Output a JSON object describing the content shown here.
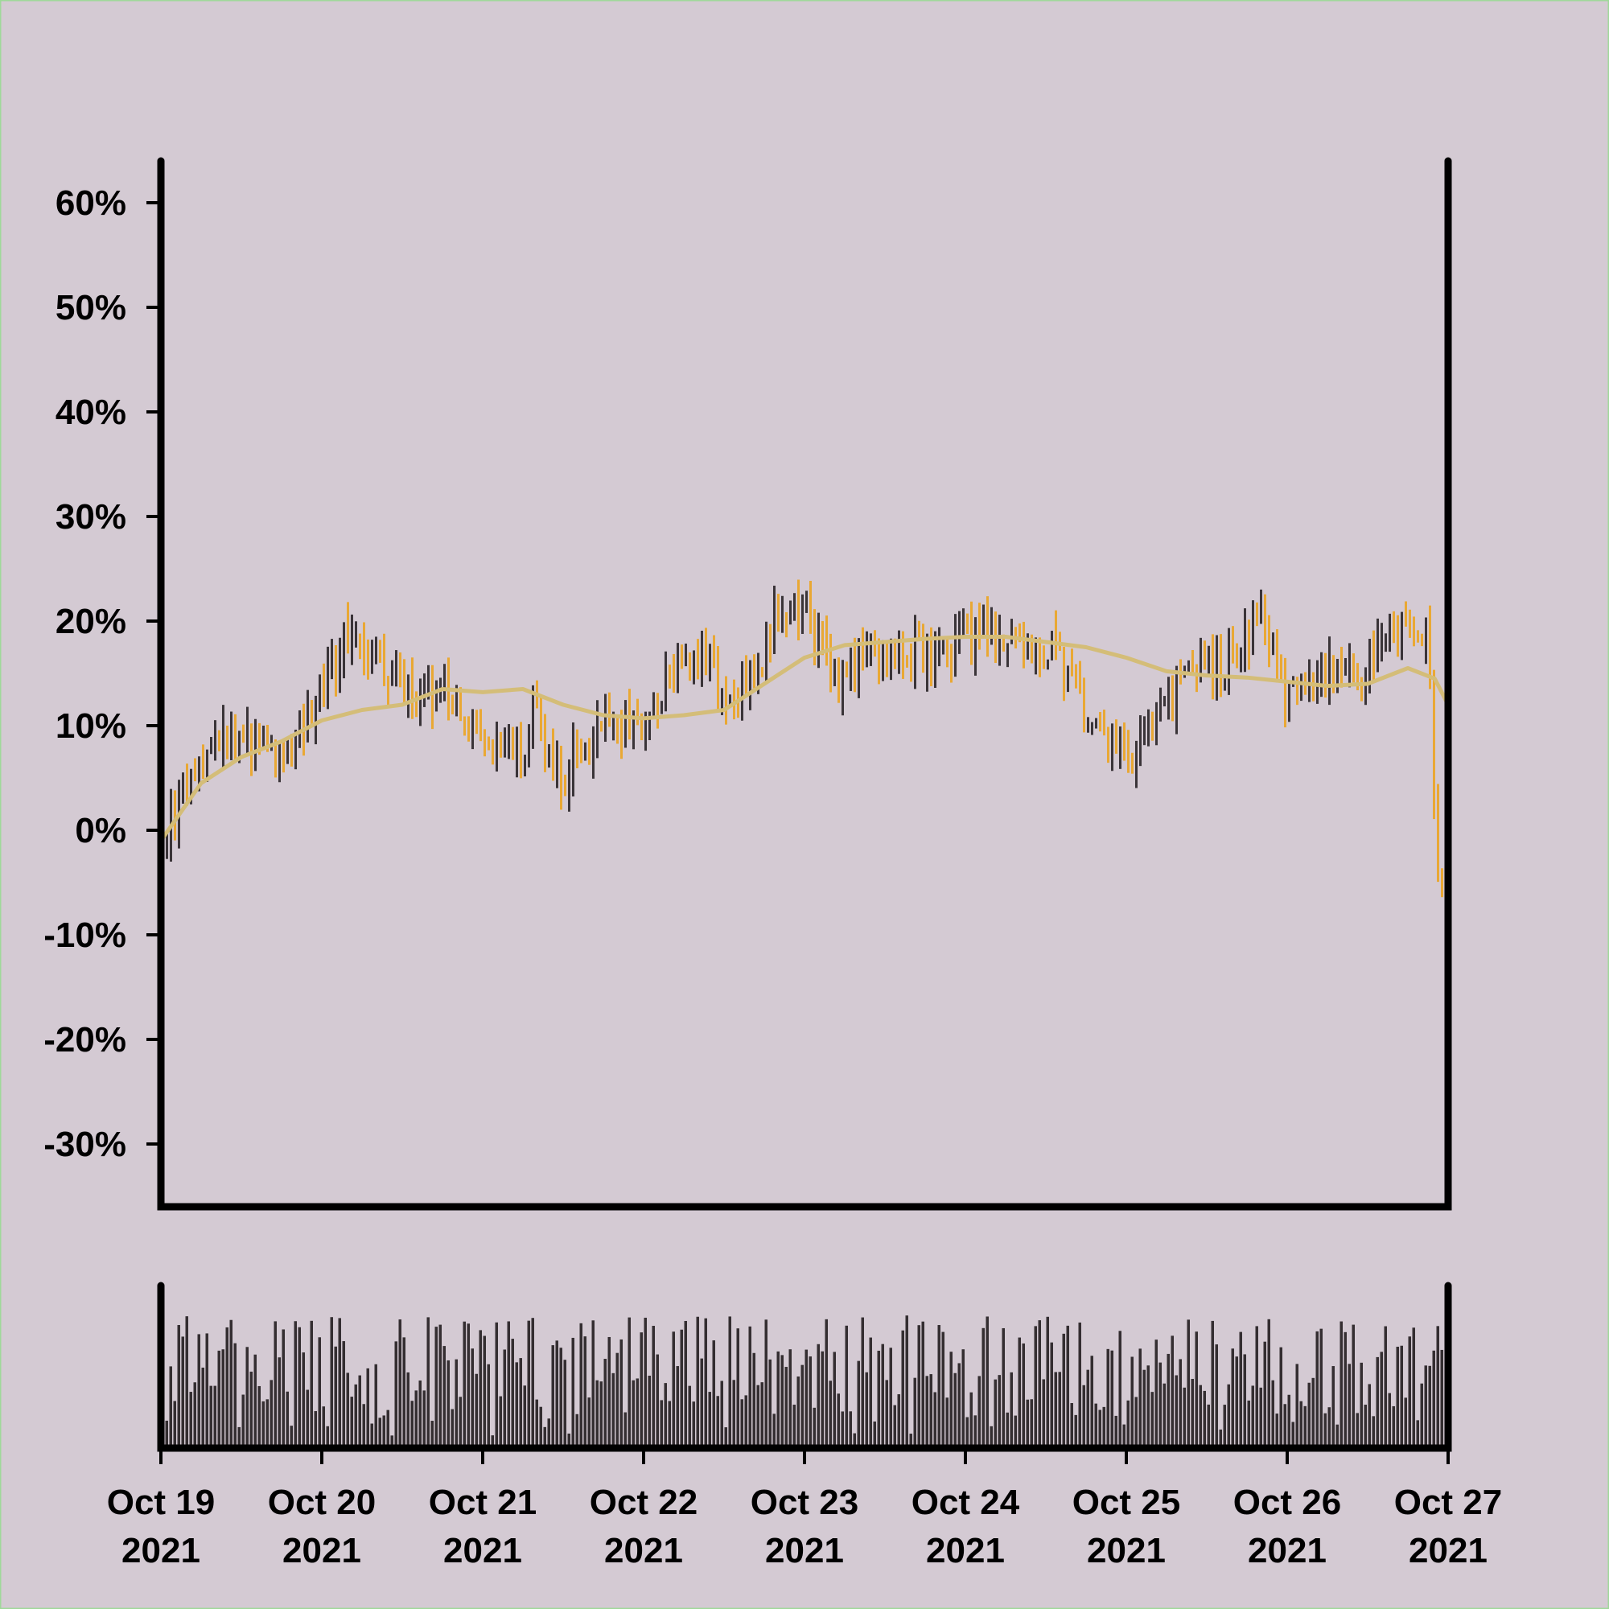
{
  "chart_data": {
    "type": "ohlc",
    "x_tick_labels": [
      {
        "line1": "Oct 19",
        "line2": "2021"
      },
      {
        "line1": "Oct 20",
        "line2": "2021"
      },
      {
        "line1": "Oct 21",
        "line2": "2021"
      },
      {
        "line1": "Oct 22",
        "line2": "2021"
      },
      {
        "line1": "Oct 23",
        "line2": "2021"
      },
      {
        "line1": "Oct 24",
        "line2": "2021"
      },
      {
        "line1": "Oct 25",
        "line2": "2021"
      },
      {
        "line1": "Oct 26",
        "line2": "2021"
      },
      {
        "line1": "Oct 27",
        "line2": "2021"
      }
    ],
    "y_tick_labels": [
      "60%",
      "50%",
      "40%",
      "30%",
      "20%",
      "10%",
      "0%",
      "-10%",
      "-20%",
      "-30%"
    ],
    "y_tick_values": [
      60,
      50,
      40,
      30,
      20,
      10,
      0,
      -10,
      -20,
      -30
    ],
    "ylim": [
      -36,
      64
    ],
    "xlim": [
      "2021-10-19",
      "2021-10-27"
    ],
    "units": "% change",
    "bars_per_day": 40,
    "price_anchors_percent": [
      [
        "2021-10-19 00:00",
        -1
      ],
      [
        "2021-10-19 06:00",
        6
      ],
      [
        "2021-10-19 12:00",
        10
      ],
      [
        "2021-10-19 18:00",
        7
      ],
      [
        "2021-10-20 00:00",
        13
      ],
      [
        "2021-10-20 03:00",
        18
      ],
      [
        "2021-10-20 07:00",
        17
      ],
      [
        "2021-10-20 12:00",
        14
      ],
      [
        "2021-10-20 18:00",
        13
      ],
      [
        "2021-10-21 00:00",
        9
      ],
      [
        "2021-10-21 05:00",
        7
      ],
      [
        "2021-10-21 08:00",
        11
      ],
      [
        "2021-10-21 12:00",
        5
      ],
      [
        "2021-10-21 17:00",
        9
      ],
      [
        "2021-10-22 00:00",
        11
      ],
      [
        "2021-10-22 05:00",
        15
      ],
      [
        "2021-10-22 09:00",
        18
      ],
      [
        "2021-10-22 12:00",
        12
      ],
      [
        "2021-10-22 18:00",
        17
      ],
      [
        "2021-10-22 20:00",
        21
      ],
      [
        "2021-10-23 00:00",
        21
      ],
      [
        "2021-10-23 05:00",
        14
      ],
      [
        "2021-10-23 09:00",
        17
      ],
      [
        "2021-10-23 13:00",
        18
      ],
      [
        "2021-10-23 20:00",
        16
      ],
      [
        "2021-10-24 03:00",
        20
      ],
      [
        "2021-10-24 08:00",
        18
      ],
      [
        "2021-10-24 14:00",
        17
      ],
      [
        "2021-10-24 19:00",
        9
      ],
      [
        "2021-10-25 00:00",
        7
      ],
      [
        "2021-10-25 06:00",
        12
      ],
      [
        "2021-10-25 10:00",
        16
      ],
      [
        "2021-10-25 16:00",
        16
      ],
      [
        "2021-10-25 20:00",
        21
      ],
      [
        "2021-10-26 00:00",
        13
      ],
      [
        "2021-10-26 06:00",
        15
      ],
      [
        "2021-10-26 10:00",
        14
      ],
      [
        "2021-10-26 15:00",
        19
      ],
      [
        "2021-10-26 21:00",
        19
      ],
      [
        "2021-10-26 22:00",
        0
      ],
      [
        "2021-10-27 00:00",
        -9
      ]
    ],
    "moving_average": [
      [
        "2021-10-19 00:00",
        -1
      ],
      [
        "2021-10-19 06:00",
        4.5
      ],
      [
        "2021-10-19 12:00",
        7
      ],
      [
        "2021-10-19 18:00",
        8.5
      ],
      [
        "2021-10-20 00:00",
        10.5
      ],
      [
        "2021-10-20 06:00",
        11.5
      ],
      [
        "2021-10-20 12:00",
        12
      ],
      [
        "2021-10-20 18:00",
        13.5
      ],
      [
        "2021-10-21 00:00",
        13.2
      ],
      [
        "2021-10-21 06:00",
        13.5
      ],
      [
        "2021-10-21 12:00",
        12
      ],
      [
        "2021-10-21 18:00",
        11
      ],
      [
        "2021-10-22 00:00",
        10.7
      ],
      [
        "2021-10-22 06:00",
        11
      ],
      [
        "2021-10-22 12:00",
        11.5
      ],
      [
        "2021-10-22 18:00",
        14
      ],
      [
        "2021-10-23 00:00",
        16.5
      ],
      [
        "2021-10-23 06:00",
        17.7
      ],
      [
        "2021-10-23 12:00",
        18
      ],
      [
        "2021-10-23 18:00",
        18.3
      ],
      [
        "2021-10-24 00:00",
        18.5
      ],
      [
        "2021-10-24 06:00",
        18.5
      ],
      [
        "2021-10-24 12:00",
        18
      ],
      [
        "2021-10-24 18:00",
        17.5
      ],
      [
        "2021-10-25 00:00",
        16.5
      ],
      [
        "2021-10-25 06:00",
        15.2
      ],
      [
        "2021-10-25 12:00",
        14.8
      ],
      [
        "2021-10-25 18:00",
        14.6
      ],
      [
        "2021-10-26 00:00",
        14.2
      ],
      [
        "2021-10-26 06:00",
        13.8
      ],
      [
        "2021-10-26 12:00",
        14
      ],
      [
        "2021-10-26 18:00",
        15.5
      ],
      [
        "2021-10-26 22:00",
        14.5
      ],
      [
        "2021-10-27 00:00",
        12
      ]
    ],
    "colors": {
      "up": "#3a3438",
      "down": "#e9a834",
      "ma": "#d4bd78",
      "volume": "#342e31",
      "background": "#d4cad3",
      "axis": "#000000"
    }
  }
}
